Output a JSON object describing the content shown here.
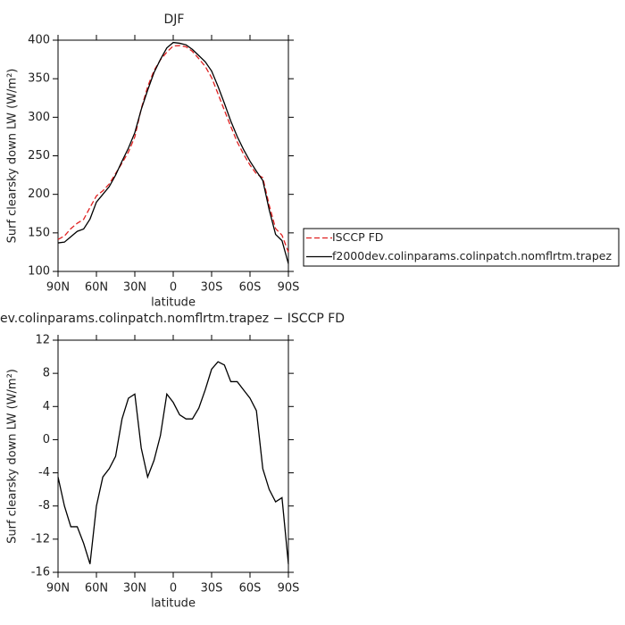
{
  "chart_data": [
    {
      "type": "line",
      "title": "DJF",
      "xlabel": "latitude",
      "ylabel": "Surf clearsky down LW (W/m²)",
      "x": [
        90,
        85,
        80,
        75,
        70,
        65,
        60,
        55,
        50,
        45,
        40,
        35,
        30,
        25,
        20,
        15,
        10,
        5,
        0,
        -5,
        -10,
        -15,
        -20,
        -25,
        -30,
        -35,
        -40,
        -45,
        -50,
        -55,
        -60,
        -65,
        -70,
        -75,
        -80,
        -85,
        -90
      ],
      "xlim": [
        90,
        -90
      ],
      "xticks": [
        {
          "value": 90,
          "label": "90N"
        },
        {
          "value": 60,
          "label": "60N"
        },
        {
          "value": 30,
          "label": "30N"
        },
        0,
        {
          "value": -30,
          "label": "30S"
        },
        {
          "value": -60,
          "label": "60S"
        },
        {
          "value": -90,
          "label": "90S"
        }
      ],
      "ylim": [
        100,
        400
      ],
      "yticks": [
        100,
        150,
        200,
        250,
        300,
        350,
        400
      ],
      "series": [
        {
          "name": "ISCCP FD",
          "color": "#e02020",
          "line_style": "dashed",
          "values": [
            141.5,
            146,
            155.5,
            162.5,
            167.5,
            183,
            198,
            204.5,
            213.5,
            227,
            240.5,
            255,
            274.5,
            311,
            339.5,
            360.5,
            374.5,
            384.5,
            392.5,
            393,
            391.5,
            385.5,
            376,
            366,
            351.5,
            330.5,
            309,
            288,
            268,
            252,
            238,
            226.5,
            221.5,
            186,
            155.5,
            147,
            125
          ]
        },
        {
          "name": "f2000dev.colinparams.colinpatch.nomflrtm.trapez",
          "color": "#000000",
          "line_style": "solid",
          "values": [
            137,
            138,
            145,
            152,
            155,
            168,
            190,
            200,
            210,
            225,
            243,
            260,
            280,
            310,
            335,
            358,
            375,
            390,
            397,
            396,
            394,
            388,
            380,
            372,
            360,
            340,
            318,
            295,
            275,
            258,
            243,
            230,
            218,
            180,
            148,
            140,
            110
          ]
        }
      ]
    },
    {
      "type": "line",
      "title": "ev.colinparams.colinpatch.nomflrtm.trapez − ISCCP FD",
      "xlabel": "latitude",
      "ylabel": "Surf clearsky down LW (W/m²)",
      "x": [
        90,
        85,
        80,
        75,
        70,
        65,
        60,
        55,
        50,
        45,
        40,
        35,
        30,
        25,
        20,
        15,
        10,
        5,
        0,
        -5,
        -10,
        -15,
        -20,
        -25,
        -30,
        -35,
        -40,
        -45,
        -50,
        -55,
        -60,
        -65,
        -70,
        -75,
        -80,
        -85,
        -90
      ],
      "xlim": [
        90,
        -90
      ],
      "xticks": [
        {
          "value": 90,
          "label": "90N"
        },
        {
          "value": 60,
          "label": "60N"
        },
        {
          "value": 30,
          "label": "30N"
        },
        0,
        {
          "value": -30,
          "label": "30S"
        },
        {
          "value": -60,
          "label": "60S"
        },
        {
          "value": -90,
          "label": "90S"
        }
      ],
      "ylim": [
        -16,
        12
      ],
      "yticks": [
        -16,
        -12,
        -8,
        -4,
        0,
        4,
        8,
        12
      ],
      "series": [
        {
          "color": "#000000",
          "line_style": "solid",
          "values": [
            -4.5,
            -8,
            -10.5,
            -10.5,
            -12.5,
            -15,
            -8,
            -4.5,
            -3.5,
            -2,
            2.5,
            5,
            5.5,
            -1,
            -4.5,
            -2.5,
            0.5,
            5.5,
            4.5,
            3,
            2.5,
            2.5,
            3.8,
            6,
            8.5,
            9.4,
            9,
            7,
            7,
            6,
            5,
            3.5,
            -3.5,
            -6,
            -7.5,
            -7,
            -15
          ]
        }
      ]
    }
  ]
}
